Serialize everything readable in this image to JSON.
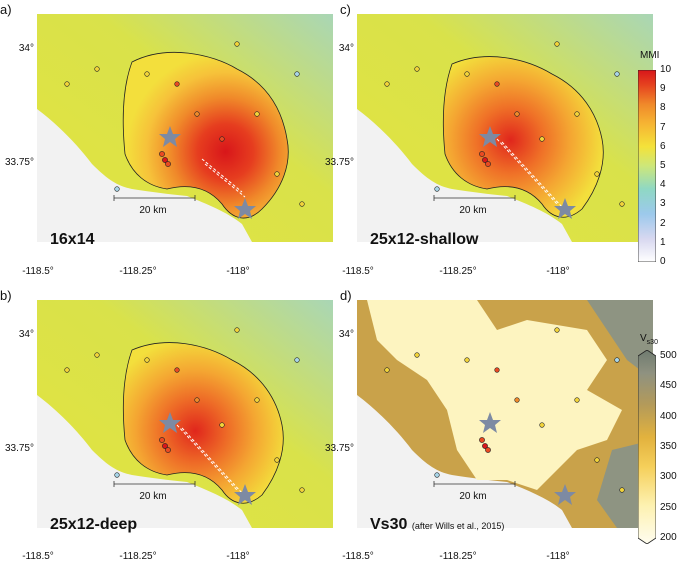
{
  "colors": {
    "mmi_low": "#b8e1d6",
    "mmi_mid": "#f7e23a",
    "mmi_orange": "#f29a2b",
    "mmi_red": "#e1261c",
    "vs30_low": "#fffbd6",
    "vs30_mid": "#d7a844",
    "vs30_high": "#8c9480"
  },
  "panels": [
    {
      "letter": "a)",
      "label": "16x14",
      "scale": "20 km"
    },
    {
      "letter": "c)",
      "label": "25x12-shallow",
      "scale": "20 km"
    },
    {
      "letter": "b)",
      "label": "25x12-deep",
      "scale": "20 km"
    },
    {
      "letter": "d)",
      "label": "Vs30",
      "label_note": "(after Wills et al., 2015)",
      "scale": "20 km"
    }
  ],
  "axes": {
    "lat_ticks": [
      "34°",
      "33.75°"
    ],
    "lon_ticks": [
      "-118.5°",
      "-118.25°",
      "-118°"
    ]
  },
  "colorbars": {
    "mmi": {
      "title": "MMI",
      "ticks": [
        "10",
        "9",
        "8",
        "7",
        "6",
        "5",
        "4",
        "3",
        "2",
        "1",
        "0"
      ]
    },
    "vs30": {
      "title": "V",
      "title_sub": "s30",
      "ticks": [
        "500",
        "450",
        "400",
        "350",
        "300",
        "250",
        "200"
      ]
    }
  }
}
